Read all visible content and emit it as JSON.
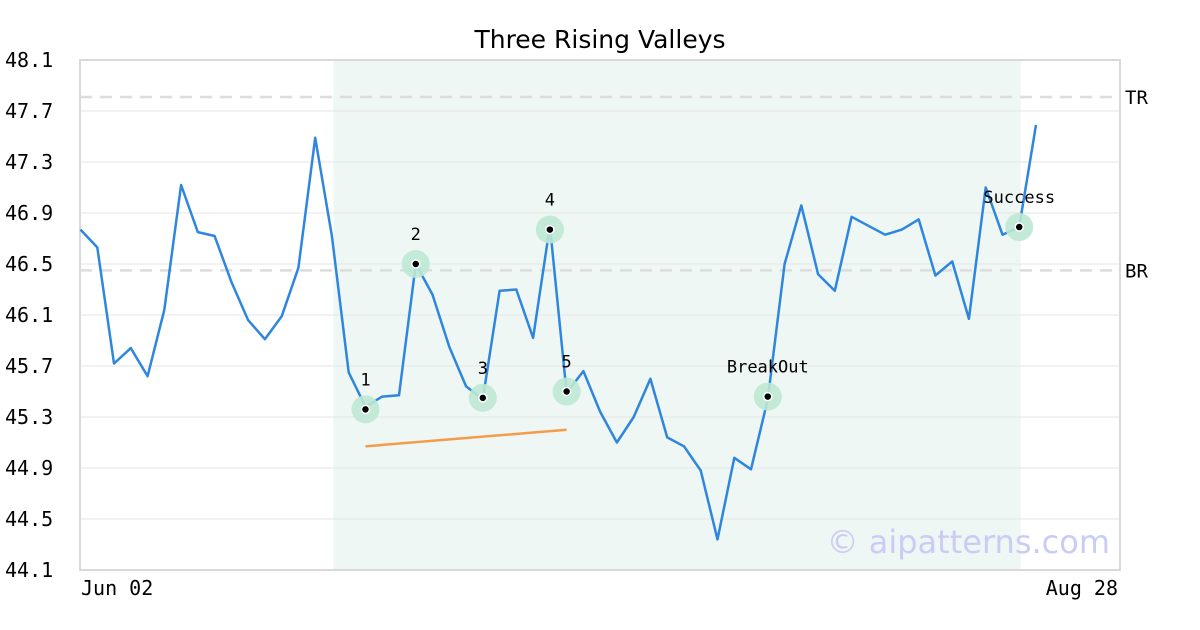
{
  "chart_data": {
    "type": "line",
    "title": "Three Rising Valleys",
    "xlabel": "",
    "ylabel": "",
    "ylim": [
      44.1,
      48.1
    ],
    "y_ticks": [
      "48.1",
      "47.7",
      "47.3",
      "46.9",
      "46.5",
      "46.1",
      "45.7",
      "45.3",
      "44.9",
      "44.5",
      "44.1"
    ],
    "x_tick_labels": [
      "Jun 02",
      "Aug 28"
    ],
    "grid": "horizontal",
    "series": [
      {
        "color": "#2e86de",
        "values": [
          46.77,
          46.63,
          45.72,
          45.84,
          45.62,
          46.14,
          47.12,
          46.75,
          46.72,
          46.36,
          46.06,
          45.91,
          46.09,
          46.47,
          47.49,
          46.72,
          45.65,
          45.38,
          45.46,
          45.47,
          46.5,
          46.26,
          45.85,
          45.54,
          45.44,
          46.29,
          46.3,
          45.92,
          46.8,
          45.49,
          45.66,
          45.34,
          45.1,
          45.3,
          45.6,
          45.14,
          45.07,
          44.88,
          44.34,
          44.98,
          44.89,
          45.44,
          46.5,
          46.96,
          46.42,
          46.29,
          46.87,
          46.8,
          46.73,
          46.77,
          46.85,
          46.41,
          46.52,
          46.07,
          47.1,
          46.73,
          46.79,
          47.59
        ]
      }
    ],
    "levels": [
      {
        "label": "TR",
        "value": 47.81
      },
      {
        "label": "BR",
        "value": 46.45
      }
    ],
    "highlight_index_range": [
      15,
      56
    ],
    "trendline": {
      "from": {
        "index": 17,
        "value": 45.07
      },
      "to": {
        "index": 29,
        "value": 45.2
      },
      "color": "#f39c4b"
    },
    "annotations": [
      {
        "label": "1",
        "index": 17,
        "value": 45.36
      },
      {
        "label": "2",
        "index": 20,
        "value": 46.5
      },
      {
        "label": "3",
        "index": 24,
        "value": 45.45
      },
      {
        "label": "4",
        "index": 28,
        "value": 46.77
      },
      {
        "label": "5",
        "index": 29,
        "value": 45.5
      },
      {
        "label": "BreakOut",
        "index": 41,
        "value": 45.46
      },
      {
        "label": "Success",
        "index": 56,
        "value": 46.79
      }
    ],
    "watermark": "© aipatterns.com"
  }
}
